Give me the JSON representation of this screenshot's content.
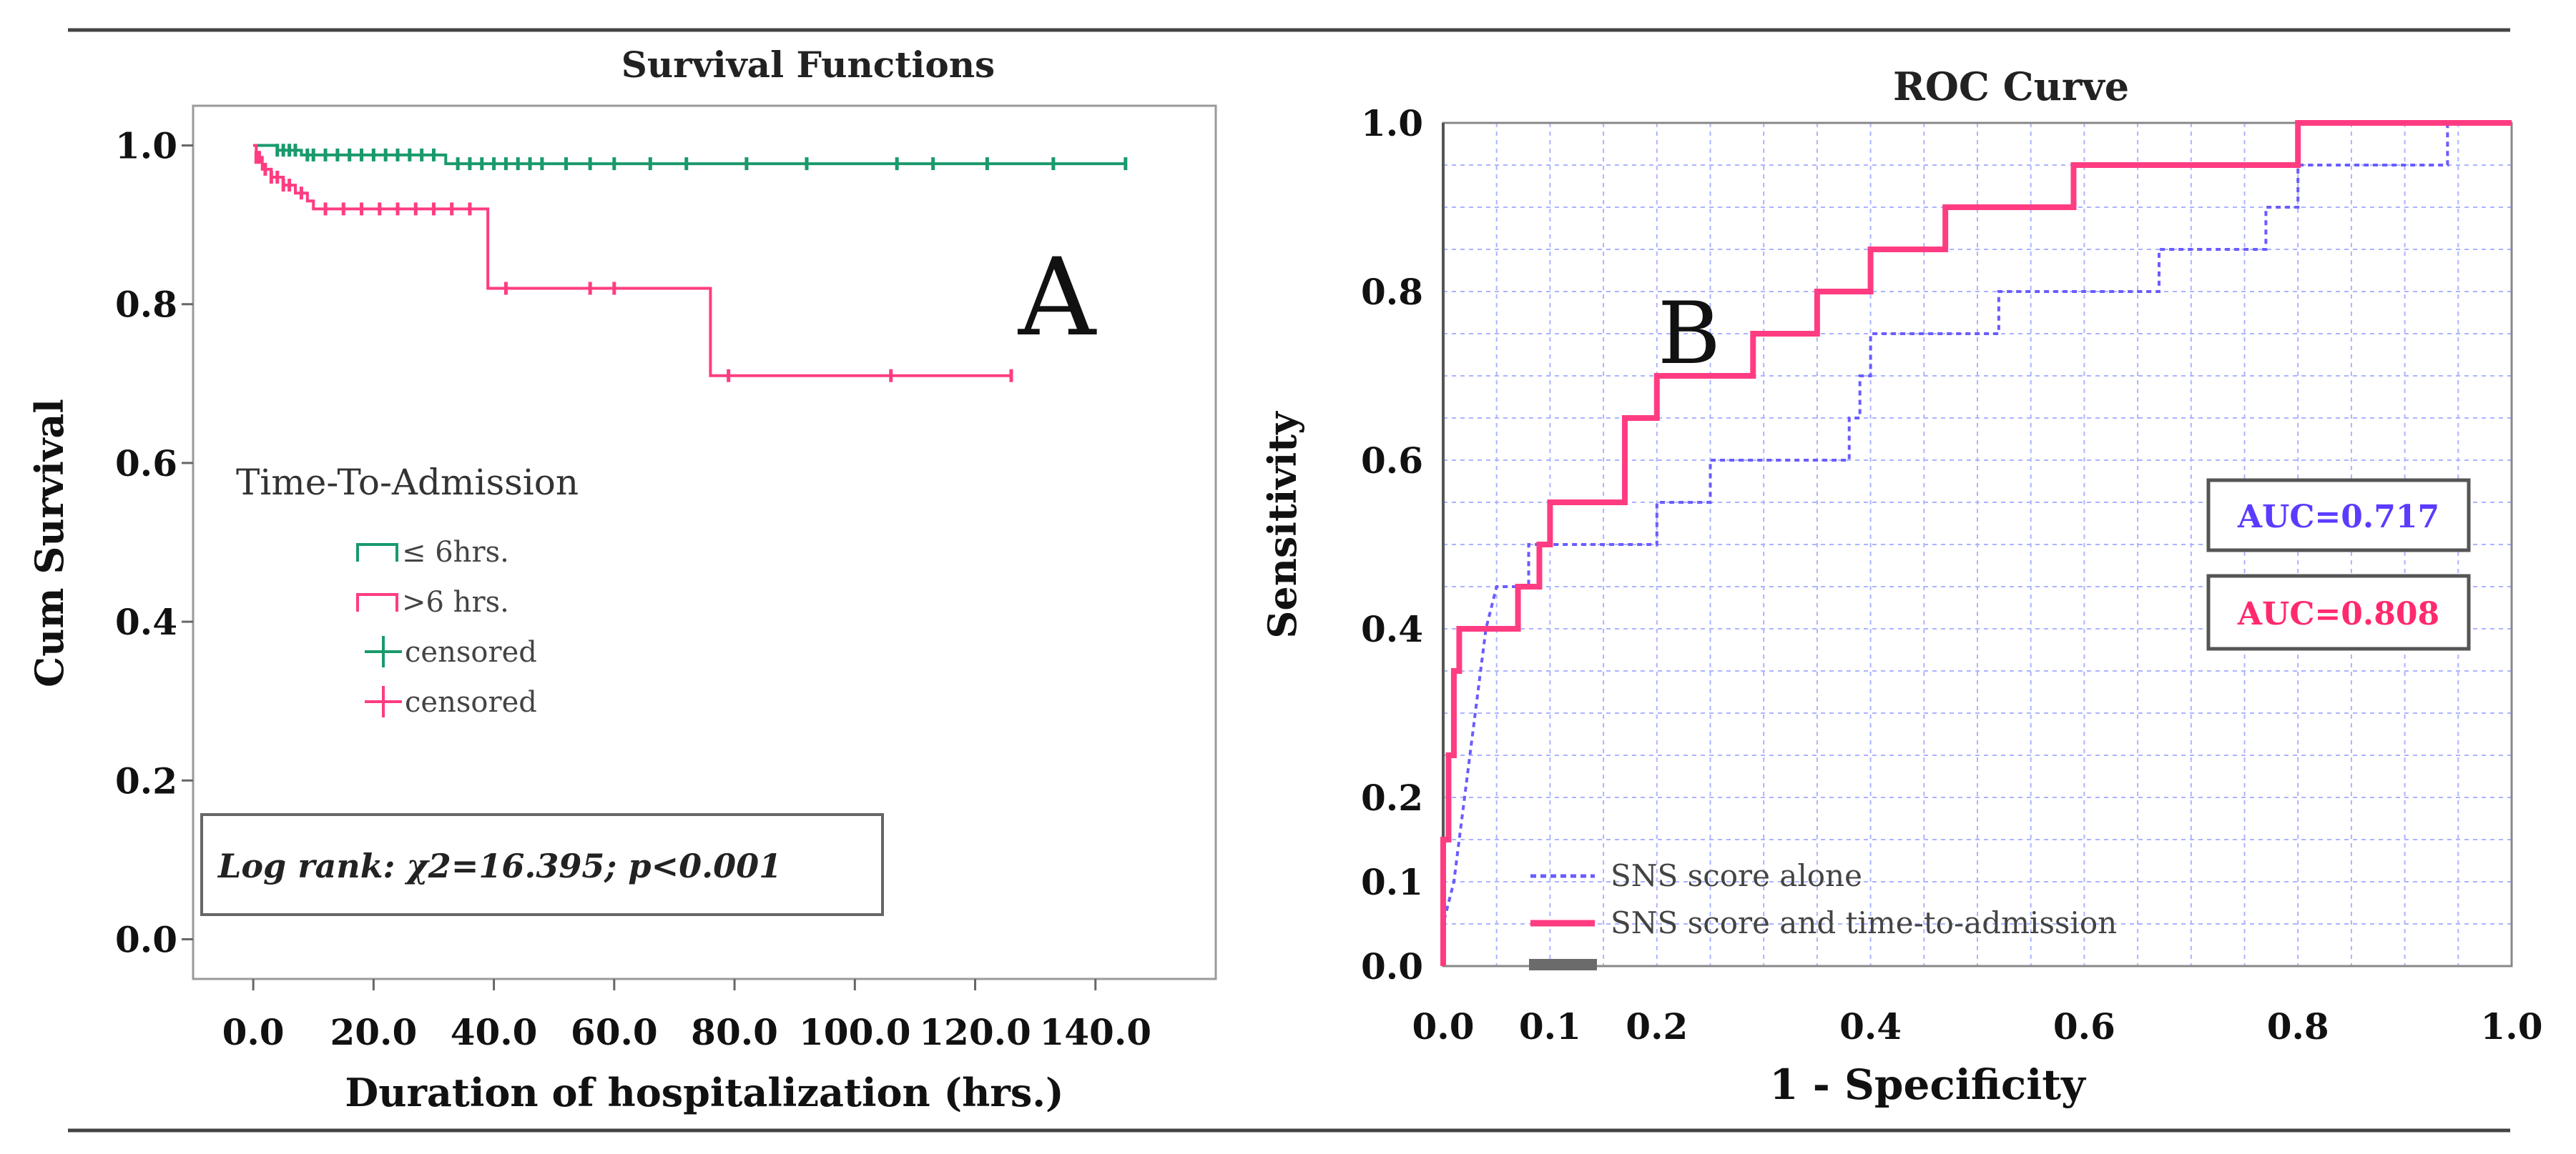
{
  "chart_data": [
    {
      "type": "line",
      "subtype": "kaplan-meier survival",
      "panel_letter": "A",
      "title": "Survival Functions",
      "xlabel": "Duration of hospitalization (hrs.)",
      "ylabel": "Cum Survival",
      "xlim": [
        -10,
        160
      ],
      "ylim": [
        -0.05,
        1.05
      ],
      "x_ticks": [
        0,
        20,
        40,
        60,
        80,
        100,
        120,
        140
      ],
      "x_tick_labels": [
        "0.0",
        "20.0",
        "40.0",
        "60.0",
        "80.0",
        "100.0",
        "120.0",
        "140.0"
      ],
      "y_ticks": [
        0.0,
        0.2,
        0.4,
        0.6,
        0.8,
        1.0
      ],
      "y_tick_labels": [
        "0.0",
        "0.2",
        "0.4",
        "0.6",
        "0.8",
        "1.0"
      ],
      "legend_title": "Time-To-Admission",
      "legend_items": [
        "≤ 6hrs.",
        ">6 hrs.",
        "censored",
        "censored"
      ],
      "annotation": "Log rank: χ2=16.395; p<0.001",
      "series": [
        {
          "name": "≤ 6hrs.",
          "color": "#1a9a6c",
          "steps": [
            [
              0,
              1.0
            ],
            [
              4,
              0.994
            ],
            [
              8,
              0.988
            ],
            [
              32,
              0.977
            ],
            [
              145,
              0.977
            ]
          ],
          "censored": [
            4,
            5,
            6,
            7,
            9,
            10,
            12,
            14,
            16,
            18,
            20,
            22,
            24,
            26,
            28,
            30,
            34,
            36,
            38,
            40,
            42,
            44,
            46,
            48,
            52,
            56,
            60,
            66,
            72,
            82,
            92,
            107,
            113,
            122,
            133,
            145
          ]
        },
        {
          "name": ">6 hrs.",
          "color": "#ff3c82",
          "steps": [
            [
              0,
              1.0
            ],
            [
              0.5,
              0.985
            ],
            [
              1.5,
              0.97
            ],
            [
              3,
              0.96
            ],
            [
              5,
              0.95
            ],
            [
              7,
              0.94
            ],
            [
              9,
              0.93
            ],
            [
              10,
              0.92
            ],
            [
              39,
              0.82
            ],
            [
              76,
              0.71
            ],
            [
              126,
              0.71
            ]
          ],
          "censored": [
            0.5,
            1,
            2,
            3,
            4,
            5,
            6,
            8,
            12,
            15,
            18,
            21,
            24,
            27,
            30,
            33,
            36,
            42,
            56,
            60,
            79,
            106,
            126
          ]
        }
      ]
    },
    {
      "type": "line",
      "subtype": "roc",
      "panel_letter": "B",
      "title": "ROC Curve",
      "xlabel": "1 - Specificity",
      "ylabel": "Sensitivity",
      "xlim": [
        0,
        1
      ],
      "ylim": [
        0,
        1
      ],
      "x_ticks": [
        0.0,
        0.1,
        0.2,
        0.4,
        0.6,
        0.8,
        1.0
      ],
      "x_tick_labels": [
        "0.0",
        "0.1",
        "0.2",
        "0.4",
        "0.6",
        "0.8",
        "1.0"
      ],
      "y_ticks": [
        0.0,
        0.1,
        0.2,
        0.4,
        0.6,
        0.8,
        1.0
      ],
      "y_tick_labels": [
        "0.0",
        "0.1",
        "0.2",
        "0.4",
        "0.6",
        "0.8",
        "1.0"
      ],
      "grid": true,
      "auc_labels": [
        "AUC=0.717",
        "AUC=0.808"
      ],
      "auc_colors": [
        "#5a3cff",
        "#ff2a6e"
      ],
      "legend_items": [
        "SNS score alone",
        "SNS score and time-to-admission"
      ],
      "series": [
        {
          "name": "SNS score alone",
          "style": "dotted",
          "color": "#6a5cff",
          "points": [
            [
              0,
              0
            ],
            [
              0,
              0.05
            ],
            [
              0.01,
              0.1
            ],
            [
              0.015,
              0.15
            ],
            [
              0.02,
              0.2
            ],
            [
              0.025,
              0.25
            ],
            [
              0.03,
              0.3
            ],
            [
              0.035,
              0.35
            ],
            [
              0.04,
              0.4
            ],
            [
              0.05,
              0.45
            ],
            [
              0.08,
              0.45
            ],
            [
              0.08,
              0.5
            ],
            [
              0.2,
              0.5
            ],
            [
              0.2,
              0.55
            ],
            [
              0.25,
              0.55
            ],
            [
              0.25,
              0.6
            ],
            [
              0.38,
              0.6
            ],
            [
              0.38,
              0.65
            ],
            [
              0.39,
              0.65
            ],
            [
              0.39,
              0.7
            ],
            [
              0.4,
              0.7
            ],
            [
              0.4,
              0.75
            ],
            [
              0.52,
              0.75
            ],
            [
              0.52,
              0.8
            ],
            [
              0.67,
              0.8
            ],
            [
              0.67,
              0.85
            ],
            [
              0.77,
              0.85
            ],
            [
              0.77,
              0.9
            ],
            [
              0.8,
              0.9
            ],
            [
              0.8,
              0.95
            ],
            [
              0.94,
              0.95
            ],
            [
              0.94,
              1.0
            ],
            [
              1.0,
              1.0
            ]
          ]
        },
        {
          "name": "SNS score and time-to-admission",
          "style": "solid",
          "color": "#ff3c82",
          "points": [
            [
              0,
              0
            ],
            [
              0,
              0.15
            ],
            [
              0.005,
              0.15
            ],
            [
              0.005,
              0.25
            ],
            [
              0.01,
              0.25
            ],
            [
              0.01,
              0.35
            ],
            [
              0.015,
              0.35
            ],
            [
              0.015,
              0.4
            ],
            [
              0.07,
              0.4
            ],
            [
              0.07,
              0.45
            ],
            [
              0.09,
              0.45
            ],
            [
              0.09,
              0.5
            ],
            [
              0.1,
              0.5
            ],
            [
              0.1,
              0.55
            ],
            [
              0.17,
              0.55
            ],
            [
              0.17,
              0.65
            ],
            [
              0.2,
              0.65
            ],
            [
              0.2,
              0.7
            ],
            [
              0.29,
              0.7
            ],
            [
              0.29,
              0.75
            ],
            [
              0.35,
              0.75
            ],
            [
              0.35,
              0.8
            ],
            [
              0.4,
              0.8
            ],
            [
              0.4,
              0.85
            ],
            [
              0.47,
              0.85
            ],
            [
              0.47,
              0.9
            ],
            [
              0.59,
              0.9
            ],
            [
              0.59,
              0.95
            ],
            [
              0.8,
              0.95
            ],
            [
              0.8,
              1.0
            ],
            [
              1.0,
              1.0
            ]
          ]
        }
      ]
    }
  ]
}
